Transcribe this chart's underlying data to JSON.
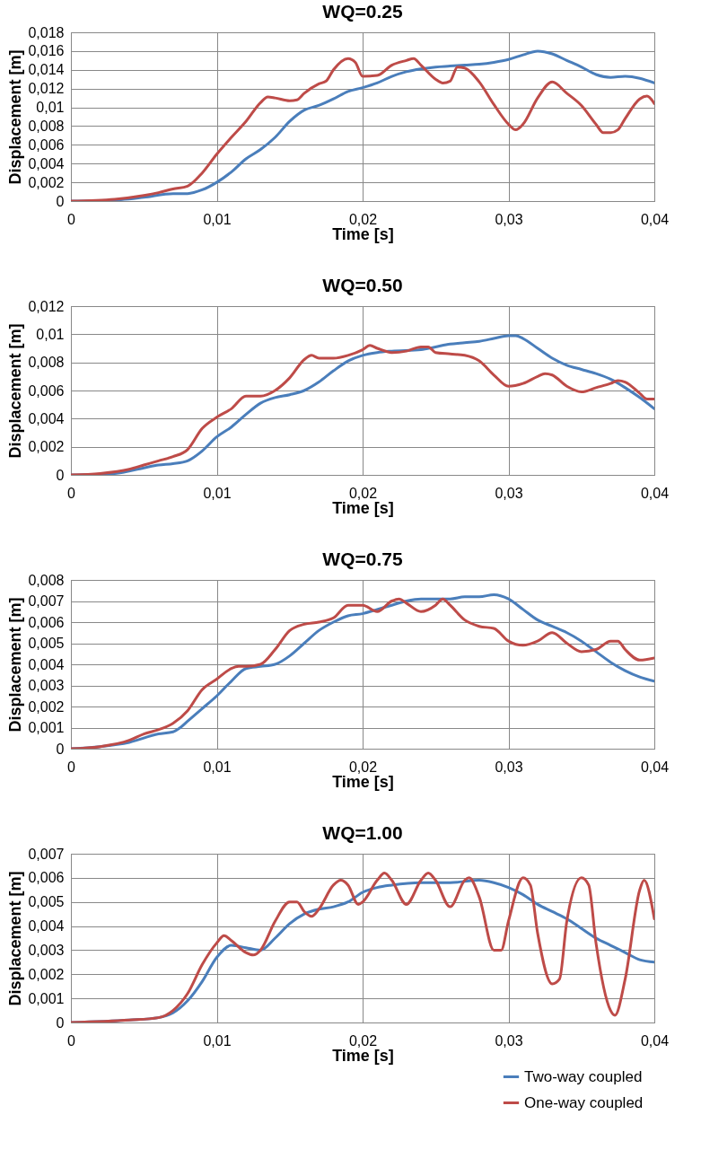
{
  "chart_data": [
    {
      "type": "line",
      "title": "WQ=0.25",
      "xlabel": "Time [s]",
      "ylabel": "Displacement [m]",
      "grid": true,
      "legend": false,
      "line_style": "solid",
      "xlim": [
        0,
        0.04
      ],
      "xticks": [
        {
          "value": 0,
          "label": "0"
        },
        {
          "value": 0.01,
          "label": "0,01"
        },
        {
          "value": 0.02,
          "label": "0,02"
        },
        {
          "value": 0.03,
          "label": "0,03"
        },
        {
          "value": 0.04,
          "label": "0,04"
        }
      ],
      "ylim": [
        0,
        0.018
      ],
      "yticks": [
        {
          "value": 0,
          "label": "0"
        },
        {
          "value": 0.002,
          "label": "0,002"
        },
        {
          "value": 0.004,
          "label": "0,004"
        },
        {
          "value": 0.006,
          "label": "0,006"
        },
        {
          "value": 0.008,
          "label": "0,008"
        },
        {
          "value": 0.01,
          "label": "0,01"
        },
        {
          "value": 0.012,
          "label": "0,012"
        },
        {
          "value": 0.014,
          "label": "0,014"
        },
        {
          "value": 0.016,
          "label": "0,016"
        },
        {
          "value": 0.018,
          "label": "0,018"
        }
      ],
      "series": [
        {
          "color": "#4a7ebb",
          "x": [
            0,
            0.003,
            0.005,
            0.007,
            0.008,
            0.009,
            0.01,
            0.011,
            0.012,
            0.013,
            0.014,
            0.015,
            0.016,
            0.017,
            0.018,
            0.019,
            0.02,
            0.021,
            0.022,
            0.023,
            0.024,
            0.025,
            0.026,
            0.027,
            0.028,
            0.029,
            0.03,
            0.031,
            0.032,
            0.033,
            0.034,
            0.035,
            0.036,
            0.037,
            0.038,
            0.039,
            0.04
          ],
          "values": [
            0,
            0.0001,
            0.0004,
            0.0008,
            0.0008,
            0.0012,
            0.002,
            0.0031,
            0.0045,
            0.0055,
            0.0068,
            0.0085,
            0.0097,
            0.0102,
            0.0109,
            0.0117,
            0.0121,
            0.0126,
            0.0133,
            0.0138,
            0.0141,
            0.0143,
            0.0144,
            0.0145,
            0.0146,
            0.0148,
            0.0151,
            0.0156,
            0.016,
            0.0157,
            0.015,
            0.0143,
            0.0135,
            0.0132,
            0.0133,
            0.0131,
            0.0126
          ]
        },
        {
          "color": "#be4b48",
          "x": [
            0,
            0.003,
            0.005,
            0.006,
            0.007,
            0.008,
            0.009,
            0.01,
            0.011,
            0.012,
            0.013,
            0.0135,
            0.014,
            0.015,
            0.0155,
            0.016,
            0.017,
            0.0175,
            0.018,
            0.019,
            0.0195,
            0.02,
            0.021,
            0.022,
            0.023,
            0.0235,
            0.024,
            0.025,
            0.0255,
            0.026,
            0.0265,
            0.027,
            0.028,
            0.029,
            0.03,
            0.0305,
            0.031,
            0.032,
            0.033,
            0.034,
            0.035,
            0.036,
            0.0365,
            0.037,
            0.0375,
            0.038,
            0.039,
            0.0395,
            0.04
          ],
          "values": [
            0,
            0.0002,
            0.0006,
            0.0009,
            0.0013,
            0.0016,
            0.003,
            0.005,
            0.0068,
            0.0085,
            0.0105,
            0.0111,
            0.011,
            0.0107,
            0.0108,
            0.0115,
            0.0125,
            0.0128,
            0.014,
            0.0152,
            0.0148,
            0.0133,
            0.0134,
            0.0145,
            0.015,
            0.0152,
            0.0145,
            0.013,
            0.0126,
            0.0128,
            0.0143,
            0.0142,
            0.0127,
            0.0103,
            0.0082,
            0.0076,
            0.0082,
            0.011,
            0.0127,
            0.0115,
            0.0102,
            0.0082,
            0.0073,
            0.0073,
            0.0076,
            0.0088,
            0.0109,
            0.0112,
            0.0104
          ]
        }
      ]
    },
    {
      "type": "line",
      "title": "WQ=0.50",
      "xlabel": "Time [s]",
      "ylabel": "Displacement [m]",
      "grid": true,
      "legend": false,
      "line_style": "solid",
      "xlim": [
        0,
        0.04
      ],
      "xticks": [
        {
          "value": 0,
          "label": "0"
        },
        {
          "value": 0.01,
          "label": "0,01"
        },
        {
          "value": 0.02,
          "label": "0,02"
        },
        {
          "value": 0.03,
          "label": "0,03"
        },
        {
          "value": 0.04,
          "label": "0,04"
        }
      ],
      "ylim": [
        0,
        0.012
      ],
      "yticks": [
        {
          "value": 0,
          "label": "0"
        },
        {
          "value": 0.002,
          "label": "0,002"
        },
        {
          "value": 0.004,
          "label": "0,004"
        },
        {
          "value": 0.006,
          "label": "0,006"
        },
        {
          "value": 0.008,
          "label": "0,008"
        },
        {
          "value": 0.01,
          "label": "0,01"
        },
        {
          "value": 0.012,
          "label": "0,012"
        }
      ],
      "series": [
        {
          "color": "#4a7ebb",
          "x": [
            0,
            0.003,
            0.005,
            0.006,
            0.007,
            0.008,
            0.009,
            0.01,
            0.011,
            0.012,
            0.013,
            0.014,
            0.015,
            0.016,
            0.017,
            0.018,
            0.019,
            0.02,
            0.021,
            0.022,
            0.024,
            0.025,
            0.026,
            0.027,
            0.028,
            0.029,
            0.03,
            0.0305,
            0.031,
            0.032,
            0.033,
            0.034,
            0.035,
            0.036,
            0.037,
            0.038,
            0.039,
            0.04
          ],
          "values": [
            0,
            0.0001,
            0.0005,
            0.0007,
            0.0008,
            0.001,
            0.0017,
            0.0027,
            0.0034,
            0.0043,
            0.0051,
            0.0055,
            0.0057,
            0.006,
            0.0066,
            0.0074,
            0.0081,
            0.0085,
            0.0087,
            0.0088,
            0.0089,
            0.0091,
            0.0093,
            0.0094,
            0.0095,
            0.0097,
            0.0099,
            0.0099,
            0.0097,
            0.009,
            0.0083,
            0.0078,
            0.0075,
            0.0072,
            0.0068,
            0.0062,
            0.0055,
            0.0047
          ]
        },
        {
          "color": "#be4b48",
          "x": [
            0,
            0.002,
            0.004,
            0.005,
            0.006,
            0.007,
            0.008,
            0.009,
            0.01,
            0.011,
            0.012,
            0.013,
            0.014,
            0.015,
            0.016,
            0.0165,
            0.017,
            0.018,
            0.019,
            0.02,
            0.0205,
            0.021,
            0.022,
            0.023,
            0.024,
            0.0245,
            0.025,
            0.026,
            0.027,
            0.028,
            0.029,
            0.03,
            0.031,
            0.032,
            0.0325,
            0.033,
            0.034,
            0.035,
            0.036,
            0.037,
            0.0375,
            0.038,
            0.039,
            0.0395,
            0.04
          ],
          "values": [
            0,
            0.0001,
            0.0004,
            0.0007,
            0.001,
            0.0013,
            0.0018,
            0.0033,
            0.0041,
            0.0047,
            0.0056,
            0.0056,
            0.006,
            0.0069,
            0.0082,
            0.0085,
            0.0083,
            0.0083,
            0.0085,
            0.0089,
            0.0092,
            0.009,
            0.0087,
            0.0088,
            0.0091,
            0.0091,
            0.0087,
            0.0086,
            0.0085,
            0.0081,
            0.0071,
            0.0063,
            0.0065,
            0.007,
            0.0072,
            0.0071,
            0.0063,
            0.0059,
            0.0062,
            0.0065,
            0.0067,
            0.0066,
            0.0058,
            0.0054,
            0.0054
          ]
        }
      ]
    },
    {
      "type": "line",
      "title": "WQ=0.75",
      "xlabel": "Time [s]",
      "ylabel": "Displacement [m]",
      "grid": true,
      "legend": false,
      "line_style": "solid",
      "xlim": [
        0,
        0.04
      ],
      "xticks": [
        {
          "value": 0,
          "label": "0"
        },
        {
          "value": 0.01,
          "label": "0,01"
        },
        {
          "value": 0.02,
          "label": "0,02"
        },
        {
          "value": 0.03,
          "label": "0,03"
        },
        {
          "value": 0.04,
          "label": "0,04"
        }
      ],
      "ylim": [
        0,
        0.008
      ],
      "yticks": [
        {
          "value": 0,
          "label": "0"
        },
        {
          "value": 0.001,
          "label": "0,001"
        },
        {
          "value": 0.002,
          "label": "0,002"
        },
        {
          "value": 0.003,
          "label": "0,003"
        },
        {
          "value": 0.004,
          "label": "0,004"
        },
        {
          "value": 0.005,
          "label": "0,005"
        },
        {
          "value": 0.006,
          "label": "0,006"
        },
        {
          "value": 0.007,
          "label": "0,007"
        },
        {
          "value": 0.008,
          "label": "0,008"
        }
      ],
      "series": [
        {
          "color": "#4a7ebb",
          "x": [
            0,
            0.002,
            0.004,
            0.006,
            0.007,
            0.0075,
            0.008,
            0.009,
            0.01,
            0.011,
            0.012,
            0.013,
            0.014,
            0.015,
            0.016,
            0.017,
            0.018,
            0.019,
            0.02,
            0.021,
            0.022,
            0.023,
            0.024,
            0.026,
            0.027,
            0.028,
            0.029,
            0.03,
            0.031,
            0.032,
            0.033,
            0.034,
            0.035,
            0.036,
            0.037,
            0.038,
            0.039,
            0.04
          ],
          "values": [
            0,
            0.0001,
            0.0003,
            0.0007,
            0.0008,
            0.001,
            0.0013,
            0.0019,
            0.0025,
            0.0032,
            0.0038,
            0.0039,
            0.004,
            0.0044,
            0.005,
            0.0056,
            0.006,
            0.0063,
            0.0064,
            0.0066,
            0.0068,
            0.007,
            0.0071,
            0.0071,
            0.0072,
            0.0072,
            0.0073,
            0.0071,
            0.0066,
            0.0061,
            0.0058,
            0.0055,
            0.0051,
            0.0046,
            0.0041,
            0.0037,
            0.0034,
            0.0032
          ]
        },
        {
          "color": "#be4b48",
          "x": [
            0,
            0.002,
            0.004,
            0.005,
            0.006,
            0.007,
            0.008,
            0.009,
            0.01,
            0.011,
            0.0115,
            0.012,
            0.013,
            0.014,
            0.015,
            0.016,
            0.017,
            0.018,
            0.019,
            0.02,
            0.021,
            0.022,
            0.0225,
            0.023,
            0.024,
            0.025,
            0.0255,
            0.026,
            0.027,
            0.028,
            0.029,
            0.03,
            0.031,
            0.032,
            0.033,
            0.034,
            0.035,
            0.036,
            0.037,
            0.0375,
            0.038,
            0.039,
            0.04
          ],
          "values": [
            0,
            0.0001,
            0.0004,
            0.0007,
            0.0009,
            0.0012,
            0.0018,
            0.0028,
            0.0033,
            0.0038,
            0.0039,
            0.0039,
            0.004,
            0.0047,
            0.0056,
            0.0059,
            0.006,
            0.0062,
            0.0068,
            0.0068,
            0.0065,
            0.007,
            0.0071,
            0.0069,
            0.0065,
            0.0068,
            0.0071,
            0.0068,
            0.0061,
            0.0058,
            0.0057,
            0.0051,
            0.0049,
            0.0051,
            0.0055,
            0.005,
            0.0046,
            0.0047,
            0.0051,
            0.0051,
            0.0047,
            0.0042,
            0.0043
          ]
        }
      ]
    },
    {
      "type": "line",
      "title": "WQ=1.00",
      "xlabel": "Time [s]",
      "ylabel": "Displacement [m]",
      "grid": true,
      "legend": "bottom right",
      "line_style": "solid",
      "xlim": [
        0,
        0.04
      ],
      "xticks": [
        {
          "value": 0,
          "label": "0"
        },
        {
          "value": 0.01,
          "label": "0,01"
        },
        {
          "value": 0.02,
          "label": "0,02"
        },
        {
          "value": 0.03,
          "label": "0,03"
        },
        {
          "value": 0.04,
          "label": "0,04"
        }
      ],
      "ylim": [
        0,
        0.007
      ],
      "yticks": [
        {
          "value": 0,
          "label": "0"
        },
        {
          "value": 0.001,
          "label": "0,001"
        },
        {
          "value": 0.002,
          "label": "0,002"
        },
        {
          "value": 0.003,
          "label": "0,003"
        },
        {
          "value": 0.004,
          "label": "0,004"
        },
        {
          "value": 0.005,
          "label": "0,005"
        },
        {
          "value": 0.006,
          "label": "0,006"
        },
        {
          "value": 0.007,
          "label": "0,007"
        }
      ],
      "series": [
        {
          "name": "Two-way coupled",
          "color": "#4a7ebb",
          "x": [
            0,
            0.004,
            0.006,
            0.007,
            0.008,
            0.009,
            0.01,
            0.011,
            0.012,
            0.013,
            0.014,
            0.015,
            0.016,
            0.017,
            0.018,
            0.019,
            0.02,
            0.021,
            0.022,
            0.024,
            0.026,
            0.028,
            0.029,
            0.03,
            0.031,
            0.032,
            0.033,
            0.034,
            0.035,
            0.036,
            0.037,
            0.038,
            0.039,
            0.04
          ],
          "values": [
            0,
            0.0001,
            0.0002,
            0.0004,
            0.0009,
            0.0017,
            0.0027,
            0.0032,
            0.0031,
            0.003,
            0.0035,
            0.0041,
            0.0045,
            0.0047,
            0.0048,
            0.005,
            0.0054,
            0.0056,
            0.0057,
            0.0058,
            0.0058,
            0.0059,
            0.0058,
            0.0056,
            0.0053,
            0.0049,
            0.0046,
            0.0043,
            0.0039,
            0.0035,
            0.0032,
            0.0029,
            0.0026,
            0.0025
          ]
        },
        {
          "name": "One-way coupled",
          "color": "#be4b48",
          "x": [
            0,
            0.004,
            0.006,
            0.007,
            0.008,
            0.009,
            0.01,
            0.0105,
            0.011,
            0.012,
            0.0125,
            0.013,
            0.014,
            0.015,
            0.0155,
            0.016,
            0.0165,
            0.017,
            0.018,
            0.0185,
            0.019,
            0.0197,
            0.02,
            0.021,
            0.0215,
            0.022,
            0.023,
            0.024,
            0.0245,
            0.025,
            0.026,
            0.027,
            0.0273,
            0.028,
            0.029,
            0.0295,
            0.03,
            0.031,
            0.0315,
            0.032,
            0.033,
            0.0335,
            0.034,
            0.035,
            0.0355,
            0.036,
            0.037,
            0.0373,
            0.038,
            0.039,
            0.0393,
            0.04
          ],
          "values": [
            0,
            0.0001,
            0.0002,
            0.0005,
            0.0012,
            0.0024,
            0.0033,
            0.0036,
            0.0034,
            0.0029,
            0.0028,
            0.003,
            0.0042,
            0.005,
            0.005,
            0.0046,
            0.0044,
            0.0047,
            0.0057,
            0.0059,
            0.0057,
            0.0049,
            0.005,
            0.0059,
            0.0062,
            0.0059,
            0.0049,
            0.0059,
            0.0062,
            0.0059,
            0.0048,
            0.0059,
            0.006,
            0.0052,
            0.003,
            0.003,
            0.0042,
            0.006,
            0.0057,
            0.0037,
            0.0016,
            0.0018,
            0.0042,
            0.006,
            0.0057,
            0.0033,
            0.0005,
            0.0003,
            0.0018,
            0.0055,
            0.0059,
            0.0043
          ]
        }
      ]
    }
  ]
}
